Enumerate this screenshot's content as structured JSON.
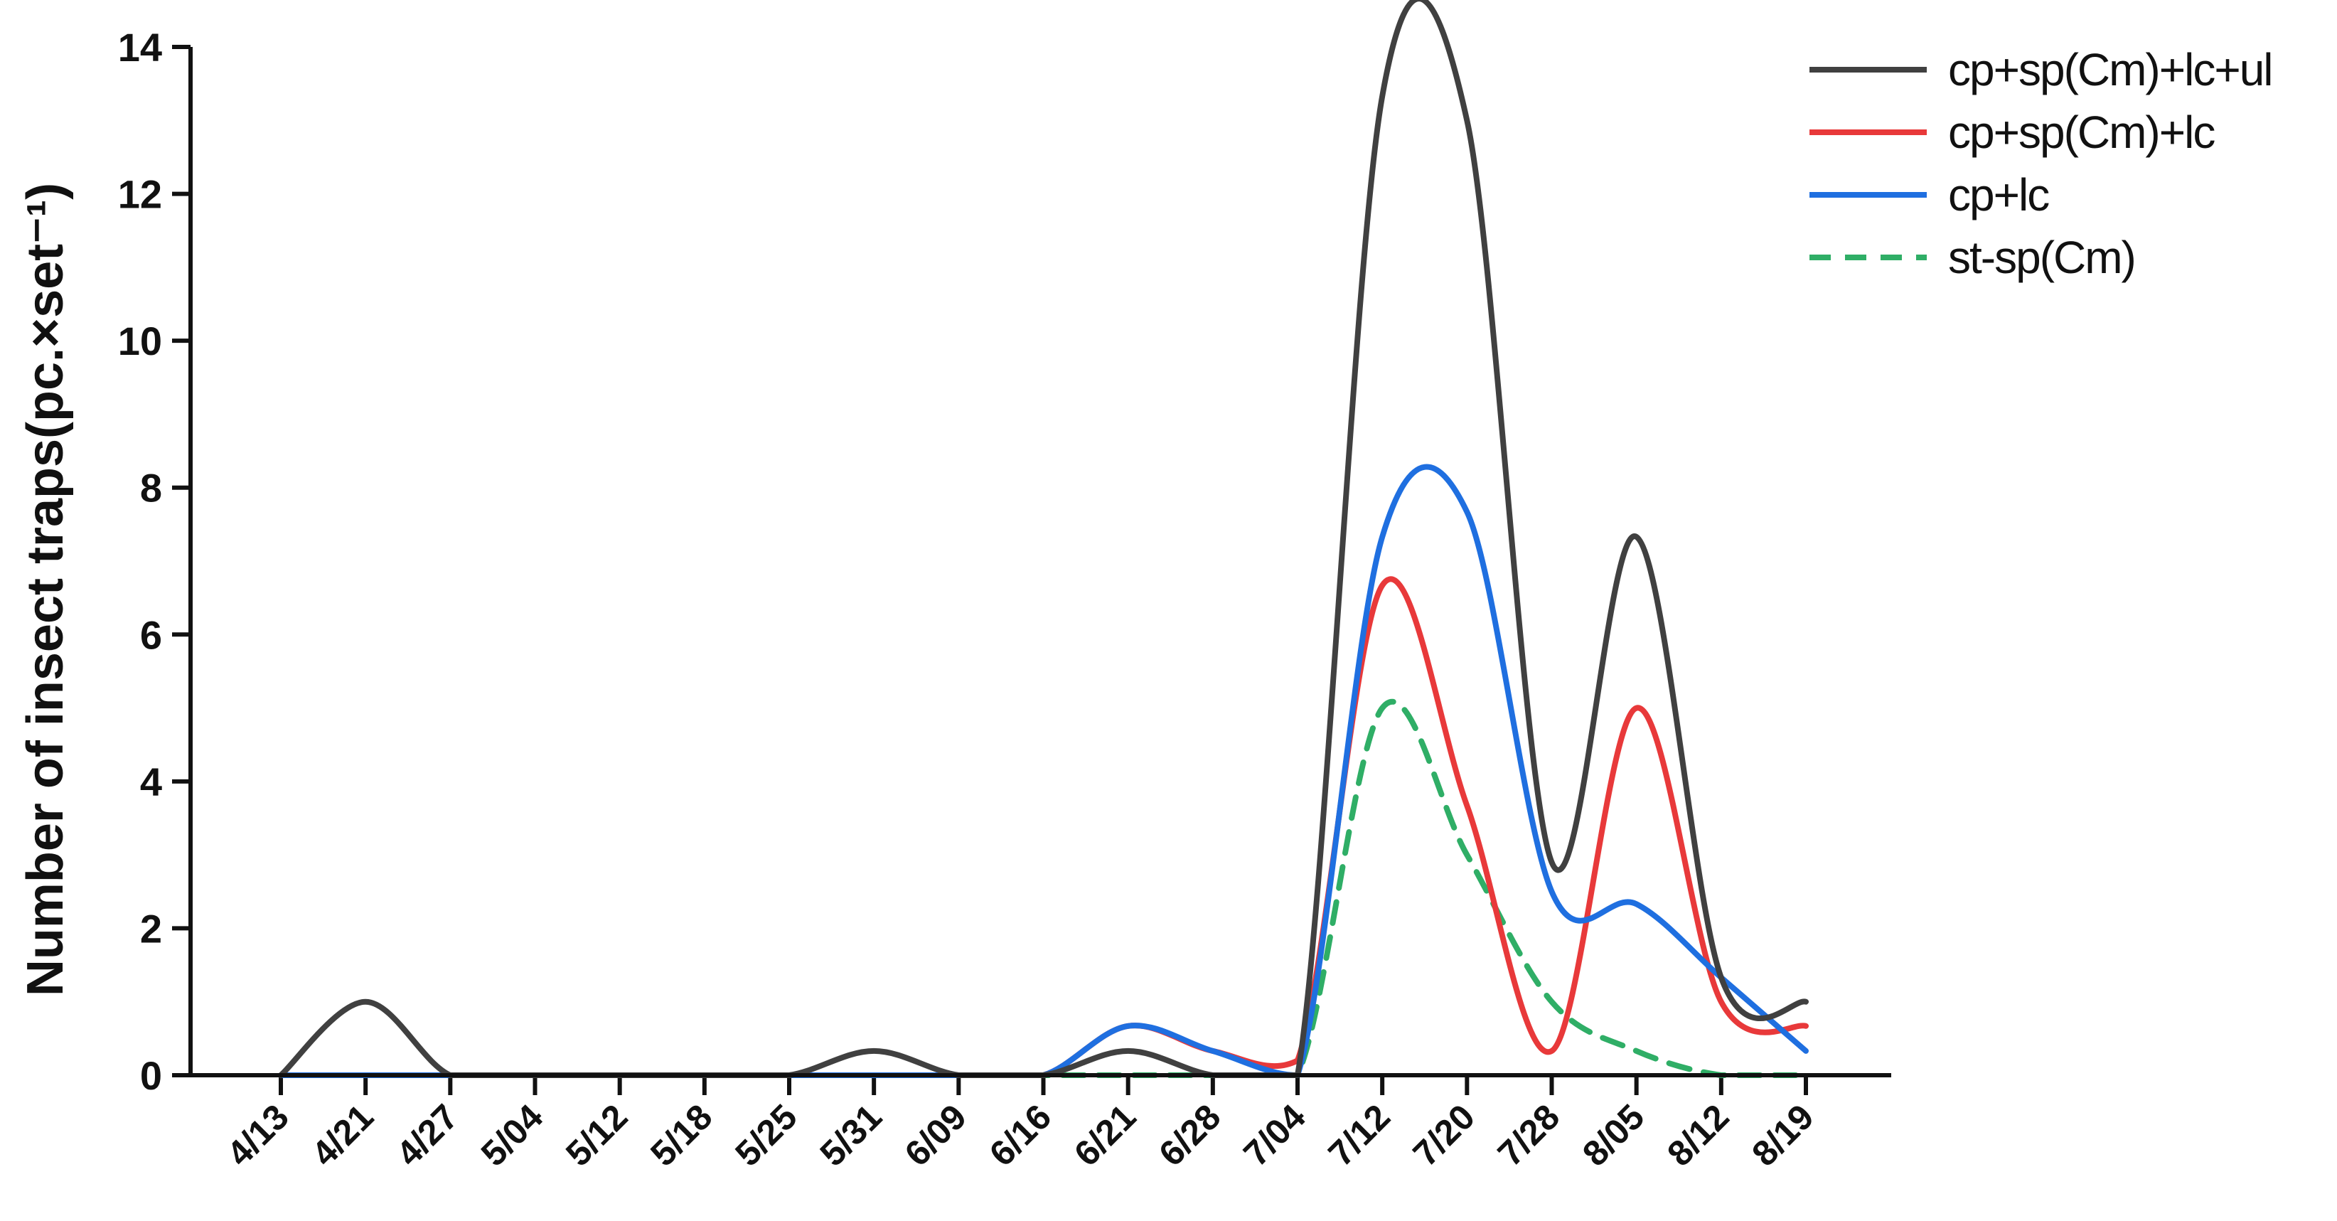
{
  "chart_data": {
    "type": "line",
    "title": "",
    "xlabel": "",
    "ylabel": "Number of insect traps(pc.×set⁻¹)",
    "ylim": [
      0,
      14
    ],
    "yticks": [
      "0",
      "2",
      "4",
      "6",
      "8",
      "10",
      "12",
      "14"
    ],
    "categories": [
      "4/13",
      "4/21",
      "4/27",
      "5/04",
      "5/12",
      "5/18",
      "5/25",
      "5/31",
      "6/09",
      "6/16",
      "6/21",
      "6/28",
      "7/04",
      "7/12",
      "7/20",
      "7/28",
      "8/05",
      "8/12",
      "8/19"
    ],
    "legend_position": "top-right",
    "grid": false,
    "series": [
      {
        "name": "cp+sp(Cm)+lc+ul",
        "color": "#404040",
        "dash": "solid",
        "values": [
          0,
          1.0,
          0,
          0,
          0,
          0,
          0,
          0.33,
          0,
          0,
          0.33,
          0,
          0,
          13.33,
          13.0,
          2.9,
          7.33,
          1.33,
          1.0
        ]
      },
      {
        "name": "cp+sp(Cm)+lc",
        "color": "#e8393a",
        "dash": "solid",
        "values": [
          0,
          0,
          0,
          0,
          0,
          0,
          0,
          0,
          0,
          0,
          0.67,
          0.33,
          0.2,
          6.67,
          3.67,
          0.33,
          5.0,
          1.0,
          0.67
        ]
      },
      {
        "name": "cp+lc",
        "color": "#1f6fe0",
        "dash": "solid",
        "values": [
          0,
          0,
          0,
          0,
          0,
          0,
          0,
          0,
          0,
          0,
          0.67,
          0.33,
          0,
          7.33,
          7.67,
          2.5,
          2.33,
          1.33,
          0.33
        ]
      },
      {
        "name": "st-sp(Cm)",
        "color": "#2fae66",
        "dash": "dashed",
        "values": [
          0,
          0,
          0,
          0,
          0,
          0,
          0,
          0,
          0,
          0,
          0,
          0,
          0,
          5.0,
          3.0,
          1.0,
          0.33,
          0,
          0
        ]
      }
    ]
  }
}
